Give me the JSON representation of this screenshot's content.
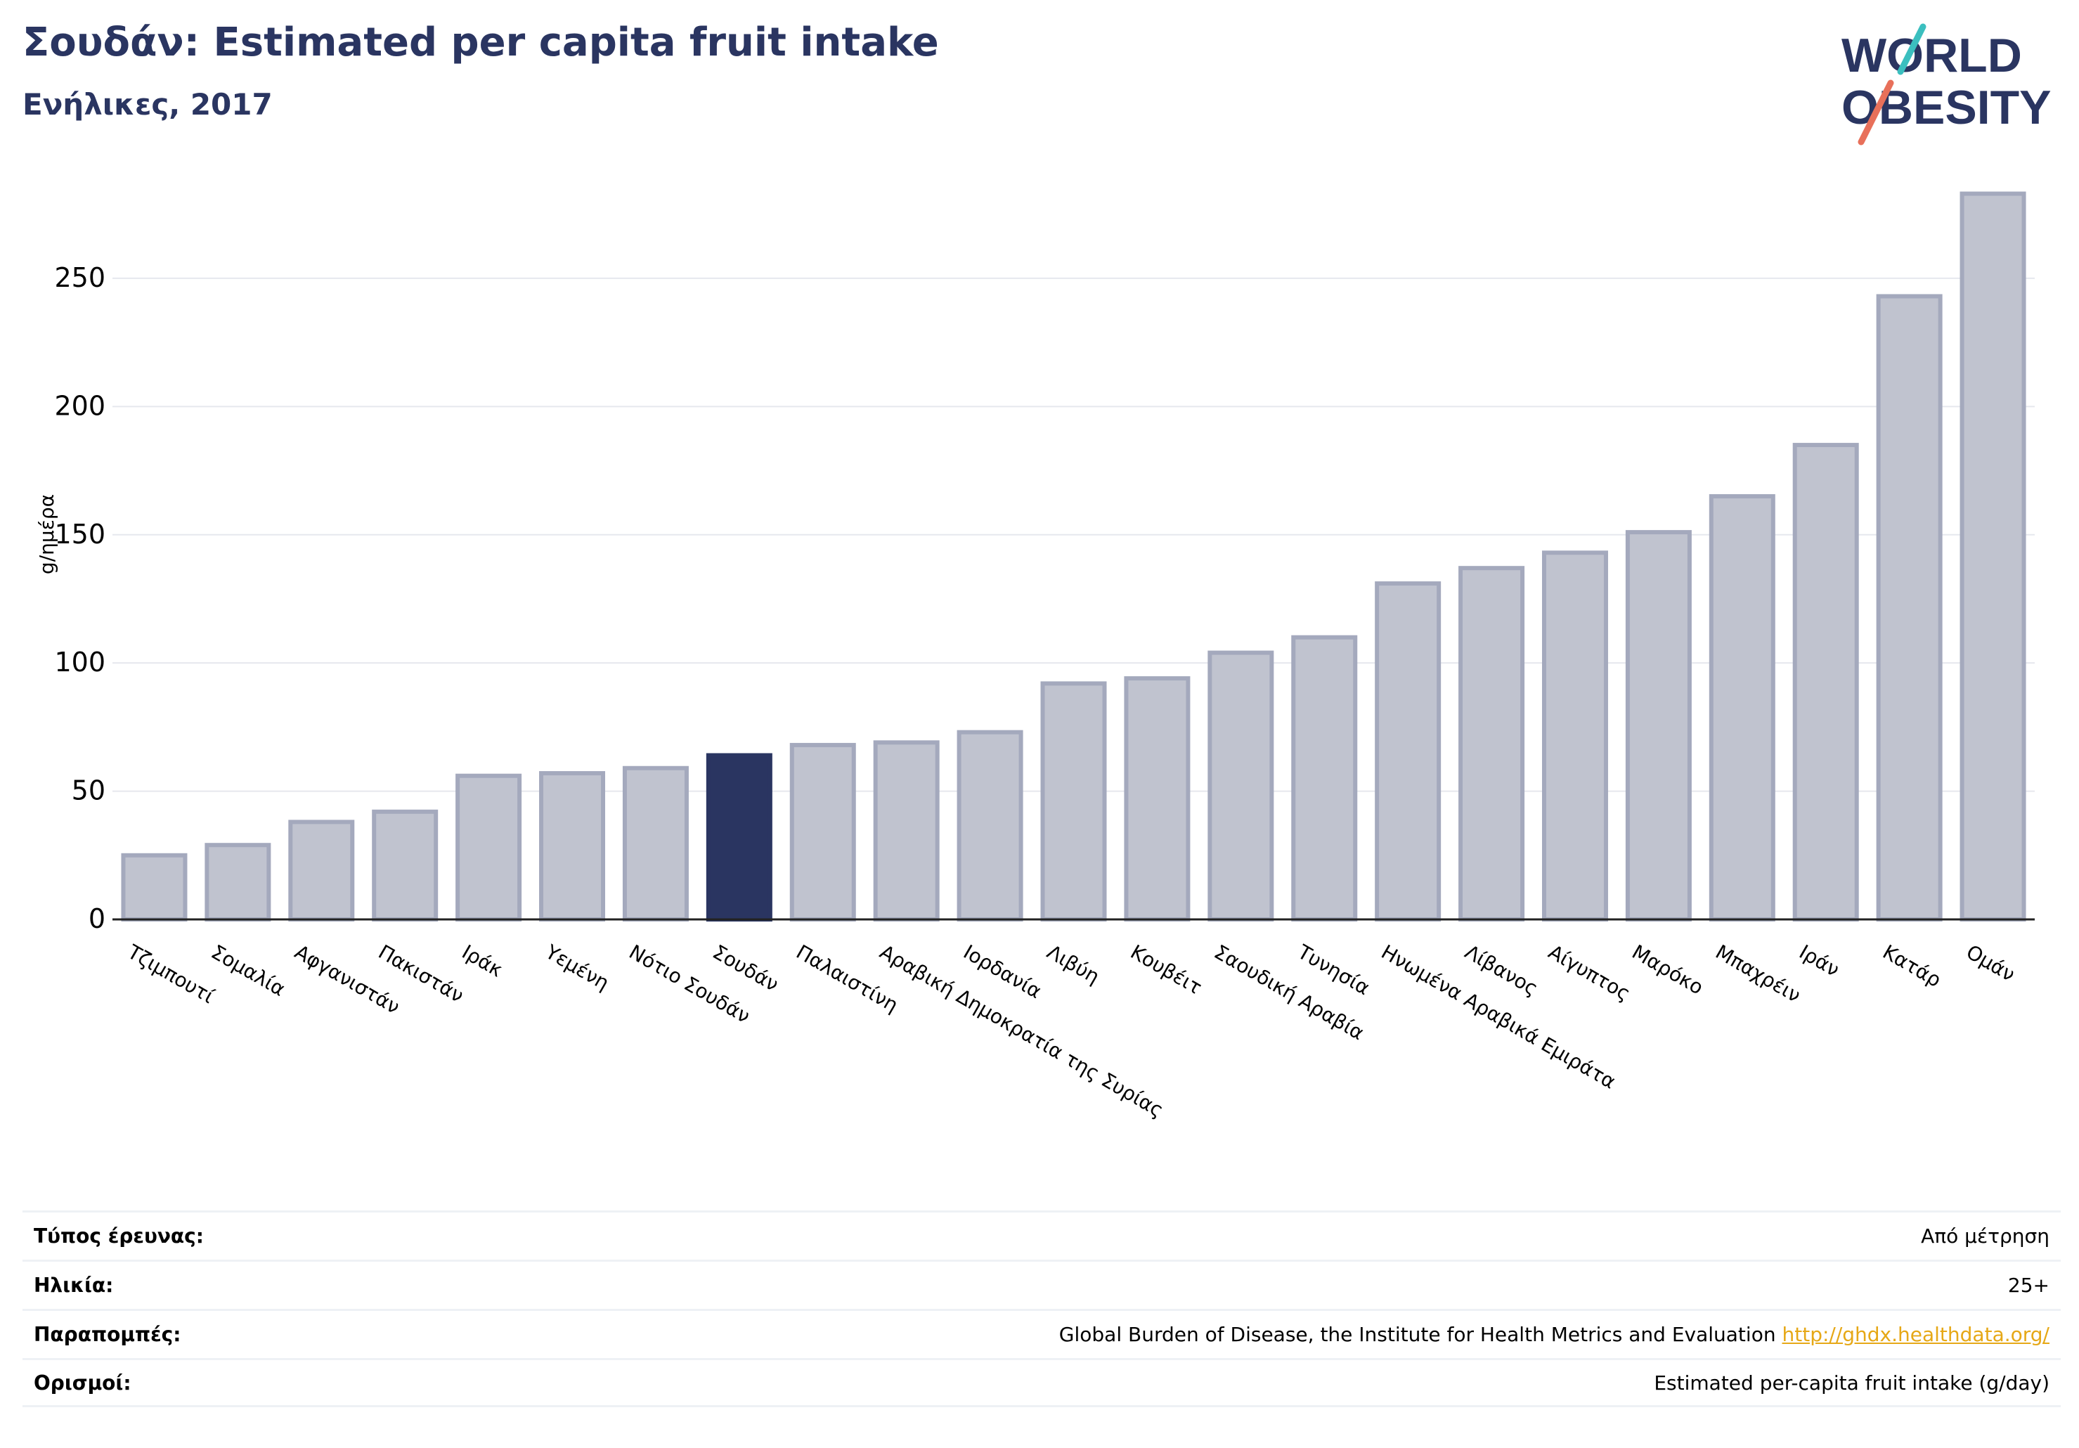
{
  "header": {
    "title": "Σουδάν: Estimated per capita fruit intake",
    "subtitle": "Ενήλικες, 2017"
  },
  "logo": {
    "line1": "WORLD",
    "line2": "OBESITY"
  },
  "colors": {
    "highlight": "#2a3561",
    "bar_fill": "#c0c3cf",
    "bar_stroke": "#a4a9bd",
    "title": "#2a3561",
    "link": "#e6a817"
  },
  "chart_data": {
    "type": "bar",
    "ylabel": "g/ημέρα",
    "ylim": [
      0,
      290
    ],
    "yticks": [
      0,
      50,
      100,
      150,
      200,
      250
    ],
    "grid": true,
    "highlight_category": "Σουδάν",
    "categories": [
      "Τζιμπουτί",
      "Σομαλία",
      "Αφγανιστάν",
      "Πακιστάν",
      "Ιράκ",
      "Υεμένη",
      "Νότιο Σουδάν",
      "Σουδάν",
      "Παλαιστίνη",
      "Αραβική Δημοκρατία της Συρίας",
      "Ιορδανία",
      "Λιβύη",
      "Κουβέιτ",
      "Σαουδική Αραβία",
      "Τυνησία",
      "Ηνωμένα Αραβικά Εμιράτα",
      "Λίβανος",
      "Αίγυπτος",
      "Μαρόκο",
      "Μπαχρέιν",
      "Ιράν",
      "Κατάρ",
      "Ομάν"
    ],
    "values": [
      25,
      29,
      38,
      42,
      56,
      57,
      59,
      64,
      68,
      69,
      73,
      92,
      94,
      104,
      110,
      131,
      137,
      143,
      151,
      165,
      185,
      243,
      283
    ]
  },
  "meta": [
    {
      "label": "Τύπος έρευνας:",
      "value": "Από μέτρηση",
      "link": ""
    },
    {
      "label": "Ηλικία:",
      "value": "25+",
      "link": ""
    },
    {
      "label": "Παραπομπές:",
      "value": "Global Burden of Disease, the Institute for Health Metrics and Evaluation",
      "link": "http://ghdx.healthdata.org/"
    },
    {
      "label": "Ορισμοί:",
      "value": "Estimated per-capita fruit intake (g/day)",
      "link": ""
    }
  ]
}
